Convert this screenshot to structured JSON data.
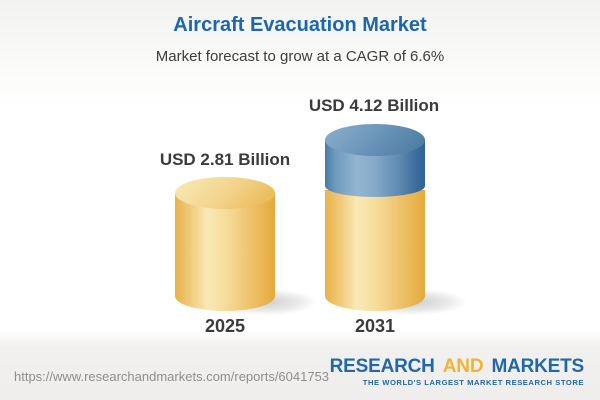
{
  "header": {
    "title": "Aircraft Evacuation Market",
    "subtitle": "Market forecast to grow at a CAGR of 6.6%"
  },
  "chart_data": {
    "type": "bar",
    "variant": "3d-cylinder-infographic",
    "categories": [
      "2025",
      "2031"
    ],
    "values": [
      2.81,
      4.12
    ],
    "value_labels": [
      "USD 2.81 Billion",
      "USD 4.12 Billion"
    ],
    "unit": "USD Billion",
    "cagr_percent": 6.6,
    "series": [
      {
        "name": "baseline-2025-value",
        "values": [
          2.81,
          2.81
        ],
        "color": "#F2CE7D"
      },
      {
        "name": "growth-2025-to-2031",
        "values": [
          0,
          1.31
        ],
        "color": "#5586B0"
      }
    ],
    "title": "Aircraft Evacuation Market",
    "subtitle": "Market forecast to grow at a CAGR of 6.6%",
    "xlabel": "",
    "ylabel": "",
    "legend": "none",
    "gridlines": false,
    "axes_shown": false
  },
  "footer": {
    "source_url": "https://www.researchandmarkets.com/reports/6041753",
    "logo": {
      "word1": "RESEARCH",
      "word2": "AND",
      "word3": "MARKETS",
      "tagline": "THE WORLD'S LARGEST MARKET RESEARCH STORE"
    }
  },
  "colors": {
    "title_blue": "#1D67AC",
    "text_dark": "#3B3B3B",
    "bar_yellow": "#F2CE7D",
    "bar_blue": "#5586B0",
    "logo_blue": "#2268A8",
    "logo_gold": "#F0B435",
    "url_gray": "#8E8E8E"
  }
}
